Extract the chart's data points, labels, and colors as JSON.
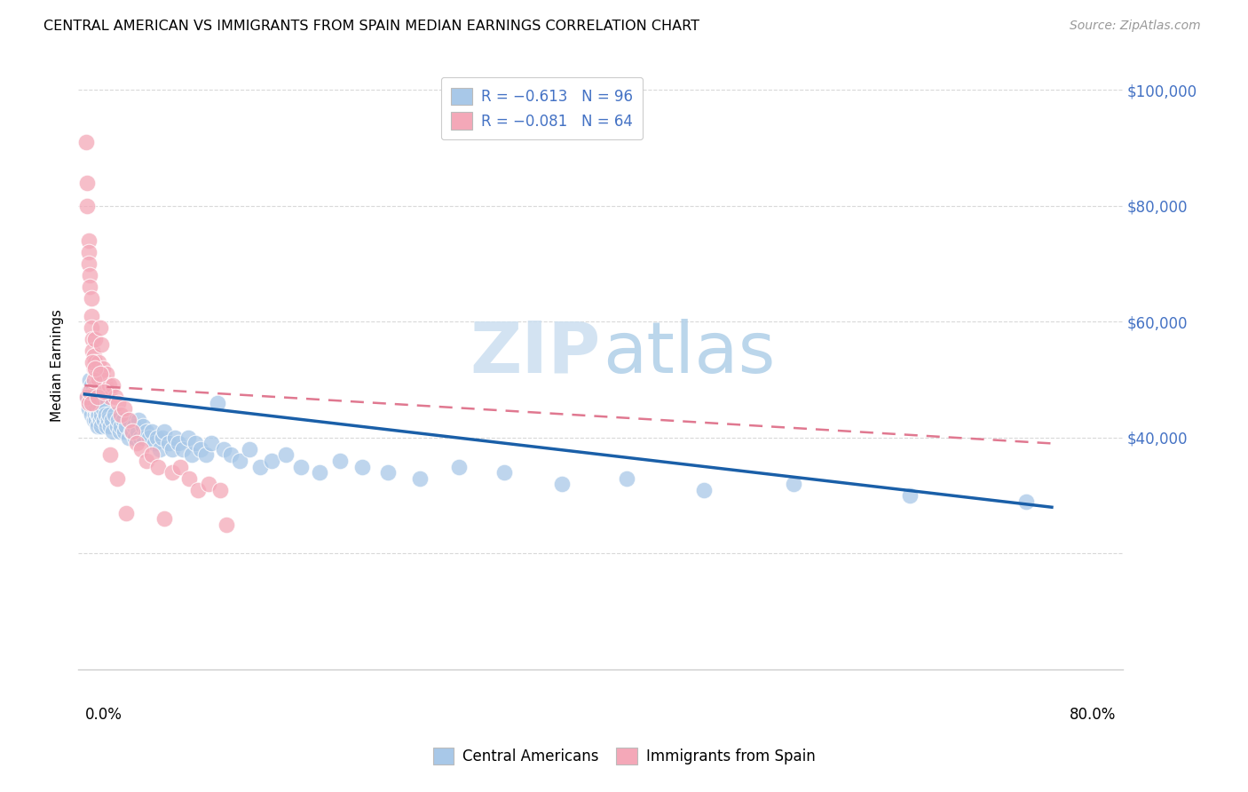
{
  "title": "CENTRAL AMERICAN VS IMMIGRANTS FROM SPAIN MEDIAN EARNINGS CORRELATION CHART",
  "source": "Source: ZipAtlas.com",
  "ylabel": "Median Earnings",
  "blue_color": "#a8c8e8",
  "pink_color": "#f4a8b8",
  "blue_line_color": "#1a5fa8",
  "pink_line_color": "#e07890",
  "legend1_r": "R = ",
  "legend1_r_val": "-0.613",
  "legend1_n": "  N = ",
  "legend1_n_val": "96",
  "legend2_r": "R = ",
  "legend2_r_val": "-0.081",
  "legend2_n": "  N = ",
  "legend2_n_val": "64",
  "legend_bottom1": "Central Americans",
  "legend_bottom2": "Immigrants from Spain",
  "blue_scatter_x": [
    0.002,
    0.003,
    0.003,
    0.004,
    0.004,
    0.005,
    0.005,
    0.005,
    0.006,
    0.006,
    0.007,
    0.007,
    0.007,
    0.008,
    0.008,
    0.008,
    0.009,
    0.009,
    0.01,
    0.01,
    0.01,
    0.011,
    0.011,
    0.012,
    0.012,
    0.013,
    0.013,
    0.014,
    0.015,
    0.015,
    0.016,
    0.017,
    0.018,
    0.019,
    0.02,
    0.021,
    0.022,
    0.023,
    0.025,
    0.026,
    0.027,
    0.028,
    0.03,
    0.031,
    0.032,
    0.034,
    0.035,
    0.036,
    0.038,
    0.039,
    0.041,
    0.042,
    0.043,
    0.045,
    0.046,
    0.048,
    0.05,
    0.052,
    0.054,
    0.056,
    0.058,
    0.06,
    0.062,
    0.065,
    0.068,
    0.07,
    0.073,
    0.076,
    0.08,
    0.083,
    0.086,
    0.09,
    0.094,
    0.098,
    0.103,
    0.108,
    0.113,
    0.12,
    0.128,
    0.136,
    0.145,
    0.156,
    0.168,
    0.182,
    0.198,
    0.215,
    0.235,
    0.26,
    0.29,
    0.325,
    0.37,
    0.42,
    0.48,
    0.55,
    0.64,
    0.73
  ],
  "blue_scatter_y": [
    47000,
    45000,
    48000,
    50000,
    46000,
    47000,
    44000,
    49000,
    46000,
    48000,
    45000,
    47000,
    43000,
    46000,
    44000,
    48000,
    45000,
    43000,
    46000,
    44000,
    42000,
    47000,
    44000,
    45000,
    43000,
    44000,
    42000,
    45000,
    43000,
    46000,
    44000,
    42000,
    43000,
    44000,
    42000,
    43000,
    41000,
    44000,
    42000,
    43000,
    41000,
    42000,
    43000,
    41000,
    42000,
    40000,
    43000,
    41000,
    42000,
    40000,
    41000,
    43000,
    40000,
    42000,
    40000,
    41000,
    40000,
    41000,
    39000,
    40000,
    38000,
    40000,
    41000,
    39000,
    38000,
    40000,
    39000,
    38000,
    40000,
    37000,
    39000,
    38000,
    37000,
    39000,
    46000,
    38000,
    37000,
    36000,
    38000,
    35000,
    36000,
    37000,
    35000,
    34000,
    36000,
    35000,
    34000,
    33000,
    35000,
    34000,
    32000,
    33000,
    31000,
    32000,
    30000,
    29000
  ],
  "pink_scatter_x": [
    0.001,
    0.002,
    0.002,
    0.003,
    0.003,
    0.003,
    0.004,
    0.004,
    0.005,
    0.005,
    0.005,
    0.006,
    0.006,
    0.007,
    0.007,
    0.008,
    0.008,
    0.009,
    0.009,
    0.01,
    0.01,
    0.011,
    0.011,
    0.012,
    0.013,
    0.014,
    0.015,
    0.016,
    0.017,
    0.019,
    0.02,
    0.022,
    0.024,
    0.026,
    0.028,
    0.031,
    0.034,
    0.037,
    0.04,
    0.044,
    0.048,
    0.052,
    0.057,
    0.062,
    0.068,
    0.074,
    0.081,
    0.088,
    0.096,
    0.105,
    0.002,
    0.003,
    0.004,
    0.005,
    0.006,
    0.007,
    0.008,
    0.01,
    0.012,
    0.015,
    0.02,
    0.025,
    0.032,
    0.11
  ],
  "pink_scatter_y": [
    91000,
    84000,
    80000,
    74000,
    72000,
    70000,
    68000,
    66000,
    64000,
    61000,
    59000,
    57000,
    55000,
    54000,
    52000,
    57000,
    53000,
    51000,
    49000,
    51000,
    48000,
    53000,
    50000,
    59000,
    56000,
    52000,
    50000,
    49000,
    51000,
    49000,
    47000,
    49000,
    47000,
    46000,
    44000,
    45000,
    43000,
    41000,
    39000,
    38000,
    36000,
    37000,
    35000,
    26000,
    34000,
    35000,
    33000,
    31000,
    32000,
    31000,
    47000,
    46000,
    48000,
    46000,
    53000,
    50000,
    52000,
    47000,
    51000,
    48000,
    37000,
    33000,
    27000,
    25000
  ],
  "xlim_min": 0.0,
  "xlim_max": 0.8,
  "ylim_min": 0,
  "ylim_max": 105000,
  "yticks": [
    20000,
    40000,
    60000,
    80000,
    100000
  ],
  "right_ytick_labels": [
    "",
    "$40,000",
    "$60,000",
    "$80,000",
    "$100,000"
  ]
}
